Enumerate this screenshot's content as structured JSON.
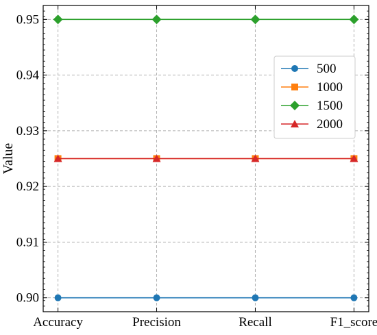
{
  "chart_data": {
    "type": "line",
    "categories": [
      "Accuracy",
      "Precision",
      "Recall",
      "F1_score"
    ],
    "series": [
      {
        "name": "500",
        "values": [
          0.9,
          0.9,
          0.9,
          0.9
        ],
        "color": "#1f77b4",
        "marker": "circle"
      },
      {
        "name": "1000",
        "values": [
          0.925,
          0.925,
          0.925,
          0.925
        ],
        "color": "#ff7f0e",
        "marker": "square"
      },
      {
        "name": "1500",
        "values": [
          0.95,
          0.95,
          0.95,
          0.95
        ],
        "color": "#2ca02c",
        "marker": "diamond"
      },
      {
        "name": "2000",
        "values": [
          0.925,
          0.925,
          0.925,
          0.925
        ],
        "color": "#d62728",
        "marker": "triangle"
      }
    ],
    "xlabel": "",
    "ylabel": "Value",
    "ylim": [
      0.8975,
      0.9525
    ],
    "yticks": [
      "0.90",
      "0.91",
      "0.92",
      "0.93",
      "0.94",
      "0.95"
    ],
    "grid": true,
    "legend_position": "right"
  }
}
